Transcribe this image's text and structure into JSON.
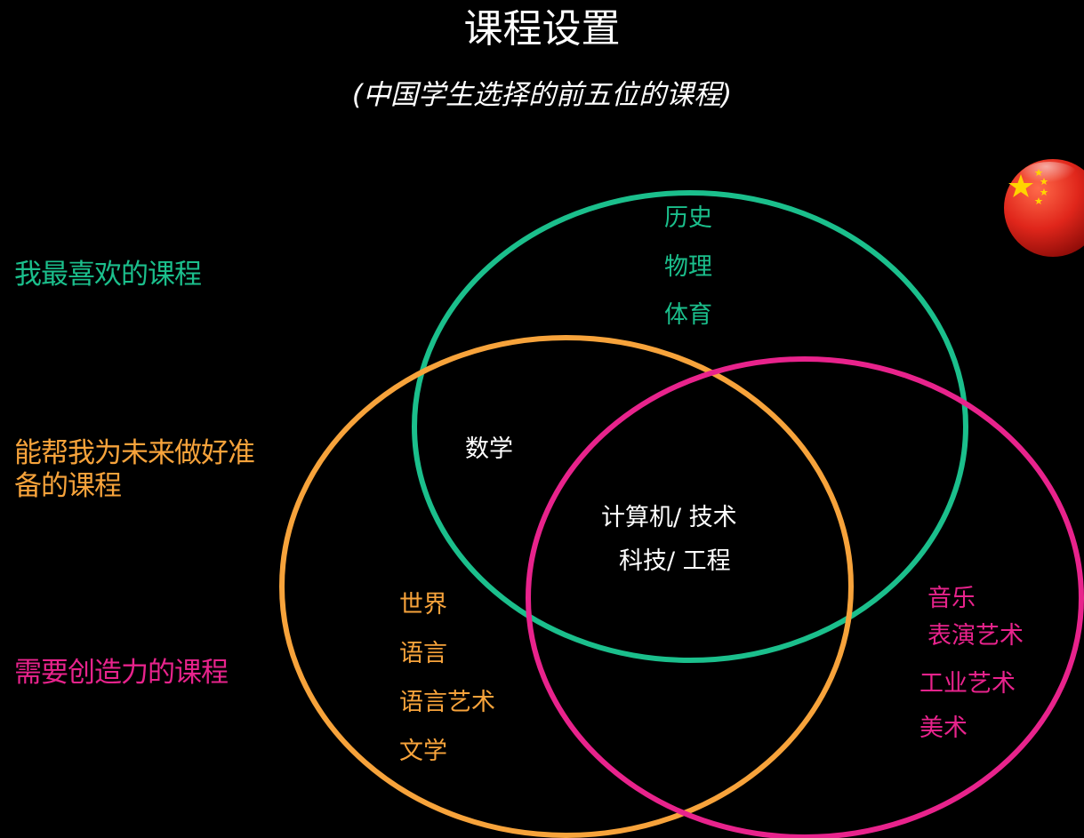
{
  "title": "课程设置",
  "subtitle": "(中国学生选择的前五位的课程)",
  "colors": {
    "background": "#000000",
    "favorite": "#1bbf8c",
    "future": "#f7a33b",
    "creative": "#e8238c",
    "neutral": "#ffffff"
  },
  "legend": {
    "favorite": "我最喜欢的课程",
    "future": "能帮我为未来做好准备的课程",
    "creative": "需要创造力的课程"
  },
  "regions": {
    "favorite_only": [
      "历史",
      "物理",
      "体育"
    ],
    "favorite_future": "数学",
    "all_three": [
      "计算机/ 技术",
      "科技/ 工程"
    ],
    "future_only": [
      "世界",
      "语言",
      "语言艺术",
      "文学"
    ],
    "creative_only": [
      "音乐",
      "表演艺术",
      "工业艺术",
      "美术"
    ]
  },
  "icon": "china-flag-icon"
}
